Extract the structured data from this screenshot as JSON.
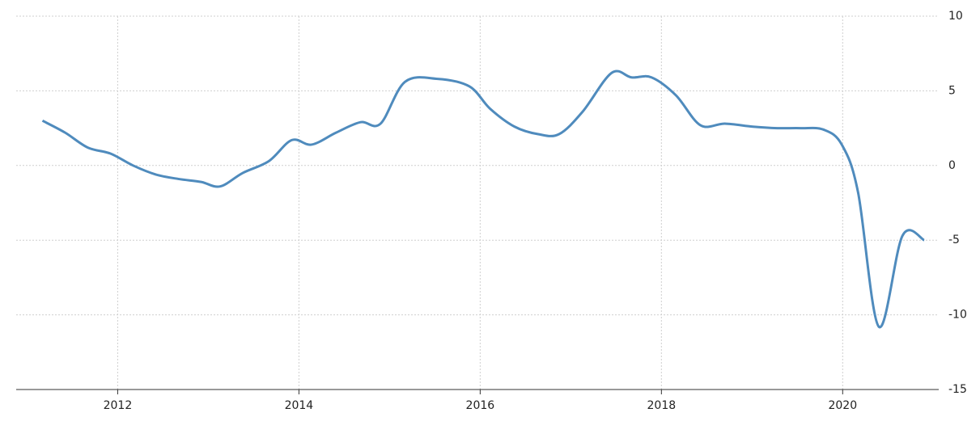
{
  "chart_data": {
    "type": "line",
    "x": [
      2011.17,
      2011.42,
      2011.67,
      2011.92,
      2012.17,
      2012.42,
      2012.67,
      2012.92,
      2013.13,
      2013.38,
      2013.67,
      2013.92,
      2014.14,
      2014.41,
      2014.68,
      2014.9,
      2015.17,
      2015.53,
      2015.88,
      2016.11,
      2016.38,
      2016.64,
      2016.87,
      2017.13,
      2017.45,
      2017.67,
      2017.89,
      2018.16,
      2018.43,
      2018.7,
      2019.01,
      2019.28,
      2019.54,
      2019.79,
      2019.99,
      2020.17,
      2020.4,
      2020.66,
      2020.9
    ],
    "series": [
      {
        "color": "#4f8bbd",
        "values": [
          3.0,
          2.2,
          1.2,
          0.8,
          0.0,
          -0.6,
          -0.9,
          -1.1,
          -1.4,
          -0.5,
          0.3,
          1.7,
          1.4,
          2.2,
          2.9,
          2.8,
          5.6,
          5.8,
          5.3,
          3.8,
          2.6,
          2.1,
          2.1,
          3.6,
          6.2,
          5.9,
          5.9,
          4.7,
          2.7,
          2.8,
          2.6,
          2.5,
          2.5,
          2.4,
          1.4,
          -1.8,
          -10.8,
          -4.7,
          -5.0
        ]
      }
    ],
    "xlim": [
      2010.88,
      2021.06
    ],
    "xticks": [
      2012,
      2014,
      2016,
      2018,
      2020
    ],
    "ylim": [
      -15,
      10
    ],
    "yticks": [
      10,
      5,
      0,
      -5,
      -10,
      -15
    ],
    "grid": true
  }
}
